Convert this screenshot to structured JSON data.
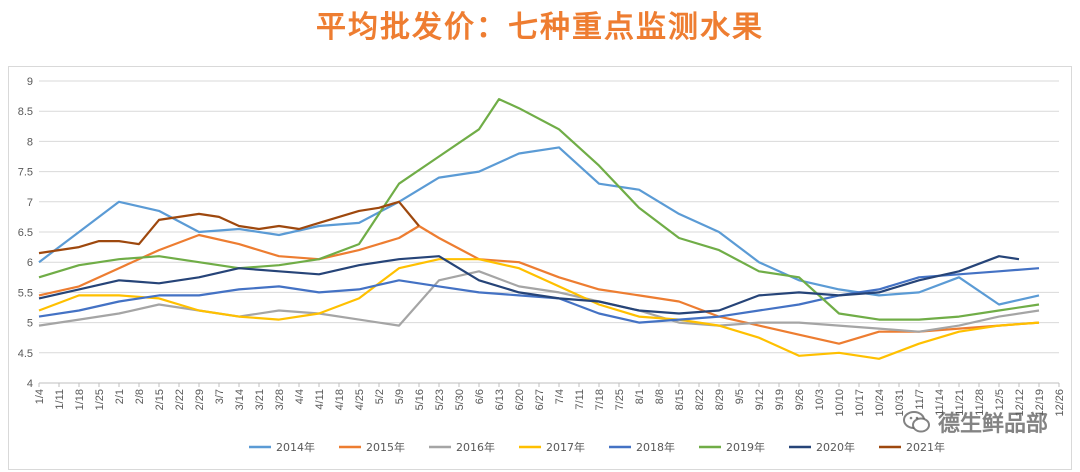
{
  "title": "平均批发价：七种重点监测水果",
  "watermark": "德生鲜品部",
  "chart_data": {
    "type": "line",
    "title": "平均批发价：七种重点监测水果",
    "xlabel": "",
    "ylabel": "",
    "ylim": [
      4,
      9
    ],
    "yticks": [
      "4",
      "4.5",
      "5",
      "5.5",
      "6",
      "6.5",
      "7",
      "7.5",
      "8",
      "8.5",
      "9"
    ],
    "grid": true,
    "legend_position": "bottom",
    "x_ticks": [
      "1/4",
      "1/11",
      "1/18",
      "1/25",
      "2/1",
      "2/8",
      "2/15",
      "2/22",
      "2/29",
      "3/7",
      "3/14",
      "3/21",
      "3/28",
      "4/4",
      "4/11",
      "4/18",
      "4/25",
      "5/2",
      "5/9",
      "5/16",
      "5/23",
      "5/30",
      "6/6",
      "6/13",
      "6/20",
      "6/27",
      "7/4",
      "7/11",
      "7/18",
      "7/25",
      "8/1",
      "8/8",
      "8/15",
      "8/22",
      "8/29",
      "9/5",
      "9/12",
      "9/19",
      "9/26",
      "10/3",
      "10/10",
      "10/17",
      "10/24",
      "10/31",
      "11/7",
      "11/14",
      "11/21",
      "11/28",
      "12/5",
      "12/12",
      "12/19",
      "12/26"
    ],
    "series": [
      {
        "name": "2014年",
        "color": "#5b9bd5",
        "x": [
          0,
          2,
          4,
          6,
          8,
          10,
          12,
          14,
          16,
          18,
          20,
          22,
          24,
          26,
          28,
          30,
          32,
          34,
          36,
          38,
          40,
          42,
          44,
          46,
          48,
          50
        ],
        "values": [
          6.0,
          6.5,
          7.0,
          6.85,
          6.5,
          6.55,
          6.45,
          6.6,
          6.65,
          7.0,
          7.4,
          7.5,
          7.8,
          7.9,
          7.3,
          7.2,
          6.8,
          6.5,
          6.0,
          5.7,
          5.55,
          5.45,
          5.5,
          5.75,
          5.3,
          5.45
        ]
      },
      {
        "name": "2015年",
        "color": "#ed7d31",
        "x": [
          0,
          2,
          4,
          6,
          8,
          10,
          12,
          14,
          16,
          18,
          19,
          20,
          22,
          24,
          26,
          28,
          30,
          32,
          34,
          36,
          38,
          40,
          42,
          44,
          46,
          48,
          50
        ],
        "values": [
          5.45,
          5.6,
          5.9,
          6.2,
          6.45,
          6.3,
          6.1,
          6.05,
          6.2,
          6.4,
          6.6,
          6.4,
          6.05,
          6.0,
          5.75,
          5.55,
          5.45,
          5.35,
          5.1,
          4.95,
          4.8,
          4.65,
          4.85,
          4.85,
          4.9,
          4.95,
          5.0
        ]
      },
      {
        "name": "2016年",
        "color": "#a5a5a5",
        "x": [
          0,
          2,
          4,
          6,
          8,
          10,
          12,
          14,
          16,
          18,
          20,
          22,
          24,
          26,
          28,
          30,
          32,
          34,
          36,
          38,
          40,
          42,
          44,
          46,
          48,
          50
        ],
        "values": [
          4.95,
          5.05,
          5.15,
          5.3,
          5.2,
          5.1,
          5.2,
          5.15,
          5.05,
          4.95,
          5.7,
          5.85,
          5.6,
          5.5,
          5.35,
          5.2,
          5.0,
          4.95,
          5.0,
          5.0,
          4.95,
          4.9,
          4.85,
          4.95,
          5.1,
          5.2
        ]
      },
      {
        "name": "2017年",
        "color": "#ffc000",
        "x": [
          0,
          2,
          4,
          6,
          8,
          10,
          12,
          14,
          16,
          18,
          20,
          22,
          24,
          26,
          28,
          30,
          32,
          34,
          36,
          38,
          40,
          42,
          44,
          46,
          48,
          50
        ],
        "values": [
          5.2,
          5.45,
          5.45,
          5.4,
          5.2,
          5.1,
          5.05,
          5.15,
          5.4,
          5.9,
          6.05,
          6.05,
          5.9,
          5.6,
          5.3,
          5.1,
          5.05,
          4.95,
          4.75,
          4.45,
          4.5,
          4.4,
          4.65,
          4.85,
          4.95,
          5.0
        ]
      },
      {
        "name": "2018年",
        "color": "#4472c4",
        "x": [
          0,
          2,
          4,
          6,
          8,
          10,
          12,
          14,
          16,
          18,
          20,
          22,
          24,
          26,
          28,
          30,
          32,
          34,
          36,
          38,
          40,
          42,
          44,
          46,
          48,
          50
        ],
        "values": [
          5.1,
          5.2,
          5.35,
          5.45,
          5.45,
          5.55,
          5.6,
          5.5,
          5.55,
          5.7,
          5.6,
          5.5,
          5.45,
          5.4,
          5.15,
          5.0,
          5.05,
          5.1,
          5.2,
          5.3,
          5.45,
          5.55,
          5.75,
          5.8,
          5.85,
          5.9
        ]
      },
      {
        "name": "2019年",
        "color": "#70ad47",
        "x": [
          0,
          2,
          4,
          6,
          8,
          10,
          12,
          14,
          16,
          18,
          20,
          22,
          23,
          24,
          26,
          28,
          30,
          32,
          34,
          36,
          38,
          40,
          42,
          44,
          46,
          48,
          50
        ],
        "values": [
          5.75,
          5.95,
          6.05,
          6.1,
          6.0,
          5.9,
          5.95,
          6.05,
          6.3,
          7.3,
          7.75,
          8.2,
          8.7,
          8.55,
          8.2,
          7.6,
          6.9,
          6.4,
          6.2,
          5.85,
          5.75,
          5.15,
          5.05,
          5.05,
          5.1,
          5.2,
          5.3
        ]
      },
      {
        "name": "2020年",
        "color": "#264478",
        "x": [
          0,
          2,
          4,
          6,
          8,
          10,
          12,
          14,
          16,
          18,
          20,
          22,
          24,
          26,
          28,
          30,
          32,
          34,
          36,
          38,
          40,
          42,
          44,
          46,
          48,
          49
        ],
        "values": [
          5.4,
          5.55,
          5.7,
          5.65,
          5.75,
          5.9,
          5.85,
          5.8,
          5.95,
          6.05,
          6.1,
          5.7,
          5.5,
          5.4,
          5.35,
          5.2,
          5.15,
          5.2,
          5.45,
          5.5,
          5.45,
          5.5,
          5.7,
          5.85,
          6.1,
          6.05
        ]
      },
      {
        "name": "2021年",
        "color": "#9e480e",
        "x": [
          0,
          1,
          2,
          3,
          4,
          5,
          6,
          7,
          8,
          9,
          10,
          11,
          12,
          13,
          14,
          15,
          16,
          17,
          18,
          19
        ],
        "values": [
          6.15,
          6.2,
          6.25,
          6.35,
          6.35,
          6.3,
          6.7,
          6.75,
          6.8,
          6.75,
          6.6,
          6.55,
          6.6,
          6.55,
          6.65,
          6.75,
          6.85,
          6.9,
          7.0,
          6.6
        ]
      }
    ]
  }
}
